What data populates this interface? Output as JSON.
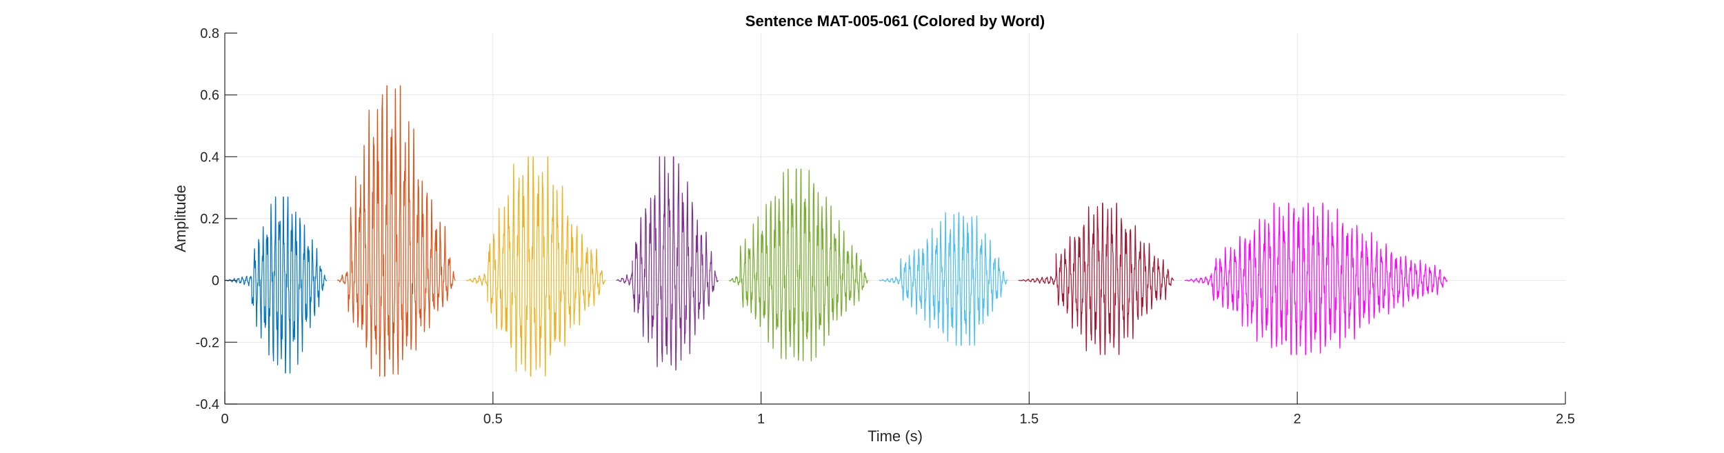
{
  "chart_data": {
    "type": "line",
    "title": "Sentence MAT-005-061 (Colored by Word)",
    "xlabel": "Time (s)",
    "ylabel": "Amplitude",
    "xlim": [
      0,
      2.5
    ],
    "ylim": [
      -0.4,
      0.8
    ],
    "xticks": [
      0,
      0.5,
      1,
      1.5,
      2,
      2.5
    ],
    "xtick_labels": [
      "0",
      "0.5",
      "1",
      "1.5",
      "2",
      "2.5"
    ],
    "yticks": [
      -0.4,
      -0.2,
      0,
      0.2,
      0.4,
      0.6,
      0.8
    ],
    "ytick_labels": [
      "-0.4",
      "-0.2",
      "0",
      "0.2",
      "0.4",
      "0.6",
      "0.8"
    ],
    "grid": true,
    "series": [
      {
        "color": "#0072BD",
        "start": 0.0,
        "end": 0.19,
        "max": 0.27,
        "min": -0.3,
        "peak_t": 0.11,
        "onset": 0.05,
        "freq": 130
      },
      {
        "color": "#D95319",
        "start": 0.21,
        "end": 0.43,
        "max": 0.63,
        "min": -0.31,
        "peak_t": 0.3,
        "onset": 0.23,
        "freq": 120
      },
      {
        "color": "#EDB120",
        "start": 0.45,
        "end": 0.71,
        "max": 0.4,
        "min": -0.31,
        "peak_t": 0.57,
        "onset": 0.49,
        "freq": 110
      },
      {
        "color": "#7E2F8E",
        "start": 0.73,
        "end": 0.92,
        "max": 0.4,
        "min": -0.29,
        "peak_t": 0.83,
        "onset": 0.76,
        "freq": 115
      },
      {
        "color": "#77AC30",
        "start": 0.94,
        "end": 1.2,
        "max": 0.36,
        "min": -0.26,
        "peak_t": 1.07,
        "onset": 0.96,
        "freq": 125
      },
      {
        "color": "#4DBEEE",
        "start": 1.22,
        "end": 1.46,
        "max": 0.22,
        "min": -0.21,
        "peak_t": 1.38,
        "onset": 1.26,
        "freq": 120
      },
      {
        "color": "#A2142F",
        "start": 1.48,
        "end": 1.77,
        "max": 0.25,
        "min": -0.24,
        "peak_t": 1.64,
        "onset": 1.55,
        "freq": 115
      },
      {
        "color": "#FF00FF",
        "start": 1.79,
        "end": 2.28,
        "max": 0.25,
        "min": -0.24,
        "peak_t": 2.0,
        "onset": 1.84,
        "freq": 110
      }
    ]
  }
}
